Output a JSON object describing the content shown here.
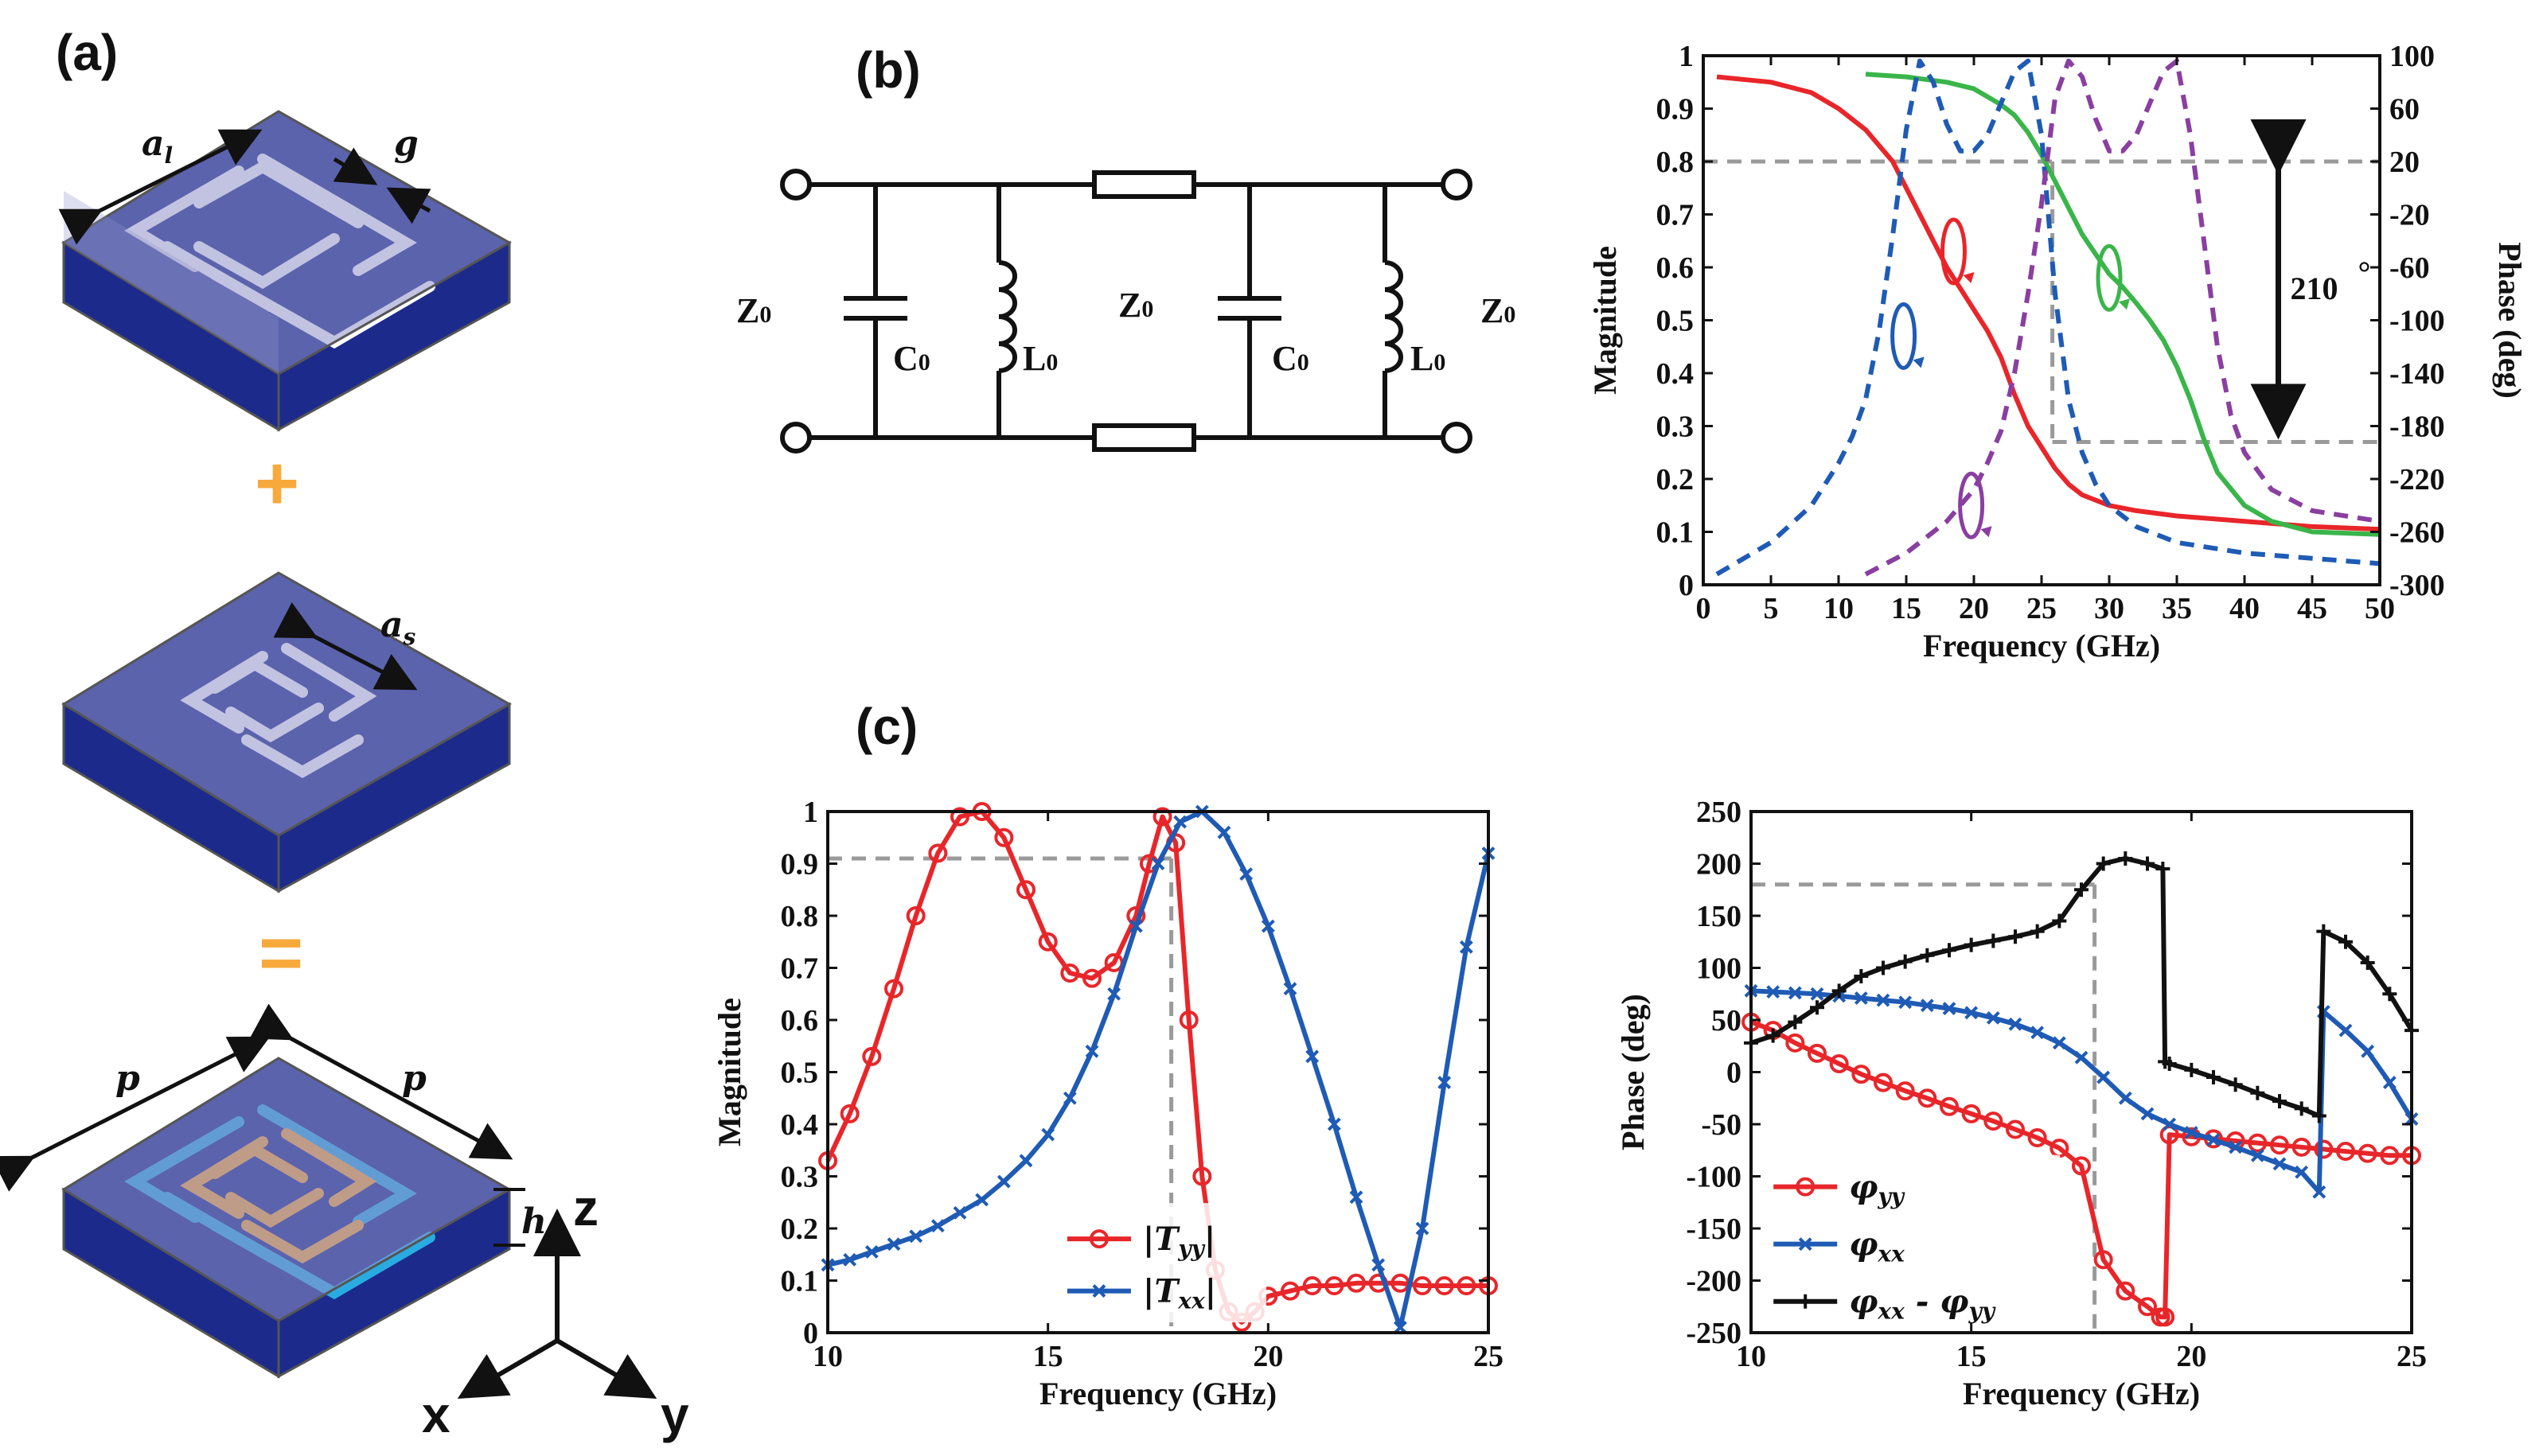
{
  "panels": {
    "a": "(a)",
    "b": "(b)",
    "c": "(c)"
  },
  "structure": {
    "label_al": "a",
    "label_al_sub": "l",
    "label_g": "g",
    "label_as": "a",
    "label_as_sub": "s",
    "label_p1": "p",
    "label_p2": "p",
    "label_h": "h",
    "plus": "+",
    "equals": "=",
    "axis_z": "z",
    "axis_x": "x",
    "axis_y": "y",
    "colors": {
      "substrate": "#1c2a8c",
      "slab": "#8f92c9",
      "large_ring": "#ffffff",
      "small_ring": "#ffffff",
      "combined_large": "#29abe2",
      "combined_small": "#f7a93b",
      "operator": "#f7a93b"
    }
  },
  "circuit": {
    "z0_left": "Z",
    "z0_mid": "Z",
    "z0_right": "Z",
    "c0_left": "C",
    "l0_left": "L",
    "c0_right": "C",
    "l0_right": "L",
    "sub0": "0"
  },
  "chart_data": [
    {
      "id": "b-plot",
      "type": "line",
      "xlabel": "Frequency (GHz)",
      "ylabel": "Magnitude",
      "ylabel2": "Phase (deg)",
      "xlim": [
        0,
        50
      ],
      "ylim": [
        0,
        1
      ],
      "y2lim": [
        -300,
        100
      ],
      "xticks": [
        0,
        5,
        10,
        15,
        20,
        25,
        30,
        35,
        40,
        45,
        50
      ],
      "yticks": [
        0,
        0.1,
        0.2,
        0.3,
        0.4,
        0.5,
        0.6,
        0.7,
        0.8,
        0.9,
        1
      ],
      "ytick_labels": [
        "0",
        "0.1",
        "0.2",
        "0.3",
        "0.4",
        "0.5",
        "0.6",
        "0.7",
        "0.8",
        "0.9",
        "1"
      ],
      "y2ticks": [
        100,
        60,
        20,
        -20,
        -60,
        -100,
        -140,
        -180,
        -220,
        -260,
        -300
      ],
      "annotation": "210",
      "annotation_deg": "°",
      "ref_h": [
        0.8,
        0.27
      ],
      "ref_v": 25.8,
      "series": [
        {
          "name": "red magnitude",
          "color": "#e8262a",
          "dash": "solid",
          "axis": "left",
          "x": [
            1,
            5,
            8,
            10,
            12,
            13,
            14,
            15,
            16,
            17,
            18,
            19,
            20,
            21,
            22,
            23,
            24,
            25,
            26,
            27,
            28,
            30,
            32,
            35,
            40,
            45,
            50
          ],
          "y": [
            0.96,
            0.95,
            0.93,
            0.9,
            0.86,
            0.83,
            0.8,
            0.75,
            0.7,
            0.65,
            0.6,
            0.56,
            0.52,
            0.48,
            0.43,
            0.36,
            0.3,
            0.26,
            0.22,
            0.19,
            0.17,
            0.15,
            0.14,
            0.13,
            0.12,
            0.11,
            0.105
          ]
        },
        {
          "name": "green phase",
          "color": "#3ab54a",
          "dash": "solid",
          "axis": "right",
          "x": [
            12,
            15,
            18,
            20,
            22,
            23,
            24,
            25,
            26,
            27,
            28,
            29,
            30,
            31,
            32,
            33,
            34,
            35,
            36,
            37,
            38,
            40,
            42,
            45,
            50
          ],
          "y": [
            86,
            84,
            80,
            75,
            63,
            55,
            42,
            25,
            5,
            -15,
            -35,
            -50,
            -65,
            -75,
            -87,
            -100,
            -115,
            -135,
            -160,
            -190,
            -215,
            -240,
            -252,
            -260,
            -262
          ]
        },
        {
          "name": "blue dashed",
          "color": "#1f5bb5",
          "dash": "dashed",
          "axis": "left",
          "x": [
            1,
            5,
            8,
            10,
            11,
            12,
            13,
            14,
            15,
            16,
            17,
            18,
            19,
            20,
            21,
            22,
            23,
            24,
            25,
            26,
            27,
            28,
            29,
            30,
            32,
            35,
            40,
            45,
            50
          ],
          "y": [
            0.02,
            0.08,
            0.15,
            0.23,
            0.28,
            0.35,
            0.48,
            0.66,
            0.86,
            0.99,
            0.95,
            0.87,
            0.82,
            0.82,
            0.85,
            0.91,
            0.97,
            0.99,
            0.85,
            0.55,
            0.35,
            0.25,
            0.19,
            0.15,
            0.11,
            0.08,
            0.06,
            0.05,
            0.04
          ]
        },
        {
          "name": "purple dashed",
          "color": "#8a3fa0",
          "dash": "dashed",
          "axis": "left",
          "x": [
            12,
            15,
            18,
            20,
            21,
            22,
            23,
            24,
            25,
            26,
            27,
            28,
            29,
            30,
            31,
            32,
            33,
            34,
            35,
            36,
            37,
            38,
            39,
            40,
            42,
            45,
            50
          ],
          "y": [
            0.02,
            0.06,
            0.12,
            0.18,
            0.23,
            0.29,
            0.4,
            0.55,
            0.72,
            0.92,
            0.99,
            0.96,
            0.88,
            0.82,
            0.82,
            0.85,
            0.91,
            0.97,
            0.99,
            0.85,
            0.65,
            0.45,
            0.32,
            0.25,
            0.18,
            0.14,
            0.12
          ]
        }
      ],
      "rotation_markers": [
        {
          "x": 14.8,
          "y": 0.47,
          "color": "#1f5bb5"
        },
        {
          "x": 18.5,
          "y": 0.63,
          "color": "#e8262a"
        },
        {
          "x": 30,
          "y": 0.58,
          "color": "#3ab54a"
        },
        {
          "x": 19.8,
          "y": 0.15,
          "color": "#8a3fa0"
        }
      ]
    },
    {
      "id": "c-mag",
      "type": "line",
      "xlabel": "Frequency (GHz)",
      "ylabel": "Magnitude",
      "xlim": [
        10,
        25
      ],
      "ylim": [
        0,
        1
      ],
      "xticks": [
        10,
        15,
        20,
        25
      ],
      "yticks": [
        0,
        0.1,
        0.2,
        0.3,
        0.4,
        0.5,
        0.6,
        0.7,
        0.8,
        0.9,
        1
      ],
      "ytick_labels": [
        "0",
        "0.1",
        "0.2",
        "0.3",
        "0.4",
        "0.5",
        "0.6",
        "0.7",
        "0.8",
        "0.9",
        "1"
      ],
      "ref_h": 0.91,
      "ref_v": 17.8,
      "legend": [
        "|T",
        "yy",
        "|",
        "|T",
        "xx",
        "|"
      ],
      "series": [
        {
          "name": "|Tyy|",
          "color": "#e8262a",
          "marker": "circle",
          "x": [
            10,
            10.5,
            11,
            11.5,
            12,
            12.5,
            13,
            13.5,
            14,
            14.5,
            15,
            15.5,
            16,
            16.5,
            17,
            17.3,
            17.6,
            17.9,
            18.2,
            18.5,
            18.8,
            19.1,
            19.4,
            19.7,
            20,
            20.5,
            21,
            21.5,
            22,
            22.5,
            23,
            23.5,
            24,
            24.5,
            25
          ],
          "y": [
            0.33,
            0.42,
            0.53,
            0.66,
            0.8,
            0.92,
            0.99,
            1.0,
            0.95,
            0.85,
            0.75,
            0.69,
            0.68,
            0.71,
            0.8,
            0.9,
            0.99,
            0.94,
            0.6,
            0.3,
            0.12,
            0.04,
            0.02,
            0.04,
            0.07,
            0.08,
            0.09,
            0.09,
            0.095,
            0.095,
            0.095,
            0.09,
            0.09,
            0.09,
            0.09
          ]
        },
        {
          "name": "|Txx|",
          "color": "#1f5bb5",
          "marker": "x",
          "x": [
            10,
            10.5,
            11,
            11.5,
            12,
            12.5,
            13,
            13.5,
            14,
            14.5,
            15,
            15.5,
            16,
            16.5,
            17,
            17.5,
            18,
            18.5,
            19,
            19.5,
            20,
            20.5,
            21,
            21.5,
            22,
            22.5,
            23,
            23.5,
            24,
            24.5,
            25
          ],
          "y": [
            0.13,
            0.14,
            0.155,
            0.17,
            0.185,
            0.205,
            0.23,
            0.255,
            0.29,
            0.33,
            0.38,
            0.45,
            0.54,
            0.65,
            0.78,
            0.9,
            0.98,
            1.0,
            0.96,
            0.88,
            0.78,
            0.66,
            0.53,
            0.4,
            0.26,
            0.13,
            0.01,
            0.2,
            0.48,
            0.74,
            0.92
          ]
        }
      ]
    },
    {
      "id": "c-phase",
      "type": "line",
      "xlabel": "Frequency (GHz)",
      "ylabel": "Phase (deg)",
      "xlim": [
        10,
        25
      ],
      "ylim": [
        -250,
        250
      ],
      "xticks": [
        10,
        15,
        20,
        25
      ],
      "yticks": [
        -250,
        -200,
        -150,
        -100,
        -50,
        0,
        50,
        100,
        150,
        200,
        250
      ],
      "ytick_labels": [
        "-250",
        "-200",
        "-150",
        "-100",
        "-50",
        "0",
        "50",
        "100",
        "150",
        "200",
        "250"
      ],
      "ref_h": 180,
      "ref_v": 17.8,
      "legend": [
        "φ",
        "yy",
        "φ",
        "xx",
        "φ",
        "xx",
        " - φ",
        "yy"
      ],
      "series": [
        {
          "name": "phi_yy",
          "color": "#e8262a",
          "marker": "circle",
          "x": [
            10,
            10.5,
            11,
            11.5,
            12,
            12.5,
            13,
            13.5,
            14,
            14.5,
            15,
            15.5,
            16,
            16.5,
            17,
            17.5,
            18,
            18.5,
            19,
            19.3,
            19.4,
            19.5,
            20,
            20.5,
            21,
            21.5,
            22,
            22.5,
            23,
            23.5,
            24,
            24.5,
            25
          ],
          "y": [
            48,
            40,
            28,
            18,
            8,
            -2,
            -10,
            -18,
            -25,
            -33,
            -40,
            -47,
            -55,
            -63,
            -73,
            -90,
            -180,
            -210,
            -225,
            -235,
            -235,
            -60,
            -62,
            -64,
            -66,
            -68,
            -70,
            -72,
            -74,
            -76,
            -78,
            -80,
            -80
          ]
        },
        {
          "name": "phi_xx",
          "color": "#1f5bb5",
          "marker": "x",
          "x": [
            10,
            10.5,
            11,
            11.5,
            12,
            12.5,
            13,
            13.5,
            14,
            14.5,
            15,
            15.5,
            16,
            16.5,
            17,
            17.5,
            18,
            18.5,
            19,
            19.5,
            20,
            20.5,
            21,
            21.5,
            22,
            22.5,
            22.9,
            23,
            23.5,
            24,
            24.5,
            25
          ],
          "y": [
            78,
            77,
            76,
            75,
            73,
            71,
            69,
            67,
            64,
            61,
            57,
            52,
            46,
            38,
            28,
            14,
            -5,
            -25,
            -40,
            -50,
            -58,
            -65,
            -72,
            -80,
            -88,
            -96,
            -115,
            58,
            40,
            20,
            -10,
            -45
          ]
        },
        {
          "name": "phi_xx - phi_yy",
          "color": "#111111",
          "marker": "plus",
          "x": [
            10,
            10.5,
            11,
            11.5,
            12,
            12.5,
            13,
            13.5,
            14,
            14.5,
            15,
            15.5,
            16,
            16.5,
            17,
            17.5,
            18,
            18.5,
            19,
            19.35,
            19.4,
            19.5,
            20,
            20.5,
            21,
            21.5,
            22,
            22.5,
            22.9,
            23,
            23.5,
            24,
            24.5,
            25
          ],
          "y": [
            28,
            35,
            48,
            62,
            78,
            92,
            100,
            106,
            112,
            117,
            122,
            126,
            130,
            135,
            145,
            175,
            200,
            205,
            200,
            195,
            10,
            8,
            2,
            -5,
            -12,
            -20,
            -28,
            -35,
            -42,
            135,
            125,
            105,
            75,
            40
          ]
        }
      ]
    }
  ]
}
